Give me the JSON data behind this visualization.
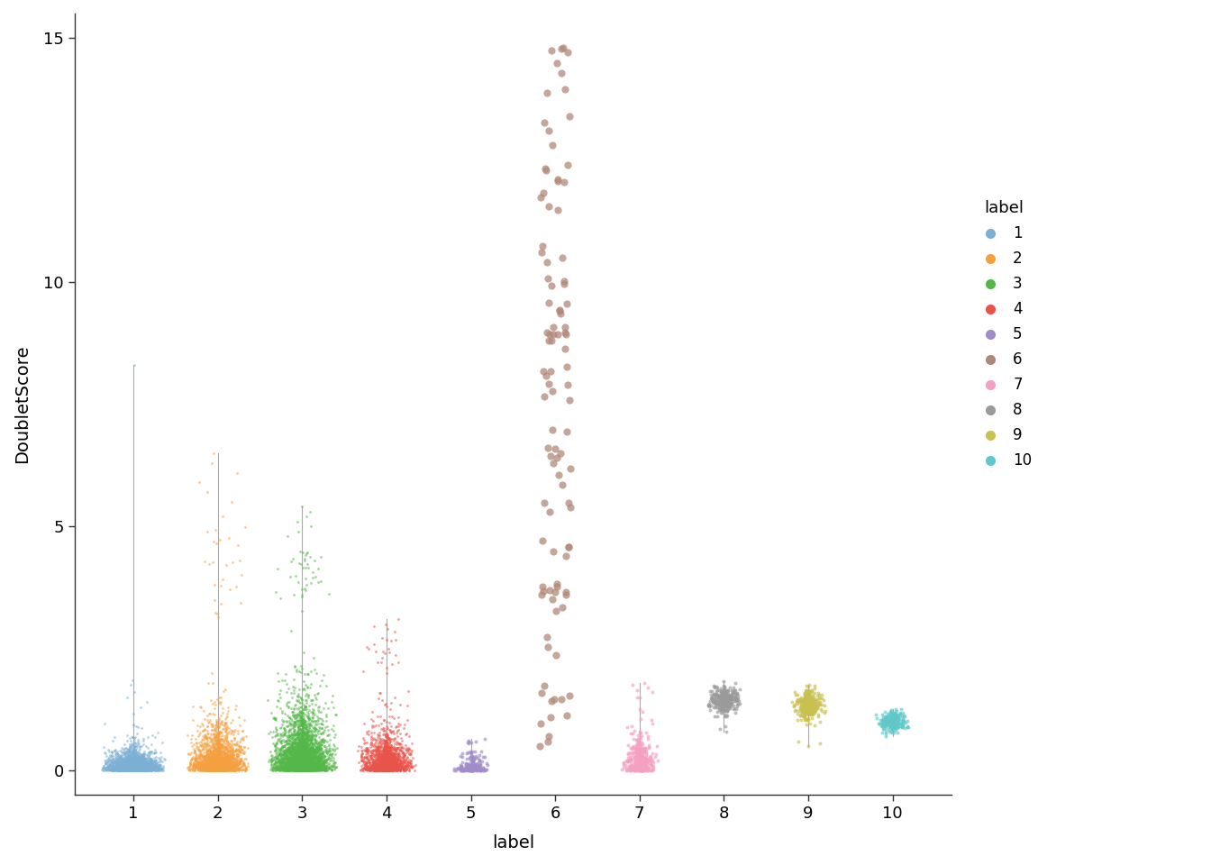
{
  "clusters": [
    1,
    2,
    3,
    4,
    5,
    6,
    7,
    8,
    9,
    10
  ],
  "colors": {
    "1": "#7BAFD4",
    "2": "#F5A040",
    "3": "#53B848",
    "4": "#E8534A",
    "5": "#A08CC8",
    "6": "#B08878",
    "7": "#F4A0C0",
    "8": "#9A9A9A",
    "9": "#C8C050",
    "10": "#60C8C8"
  },
  "xlabel": "label",
  "ylabel": "DoubletScore",
  "ylim": [
    -0.5,
    15.5
  ],
  "yticks": [
    0,
    5,
    10,
    15
  ],
  "legend_title": "label",
  "background": "#FFFFFF",
  "spine_color": "#808080",
  "point_alpha": 0.6,
  "violin6_linecolor": "#888888"
}
